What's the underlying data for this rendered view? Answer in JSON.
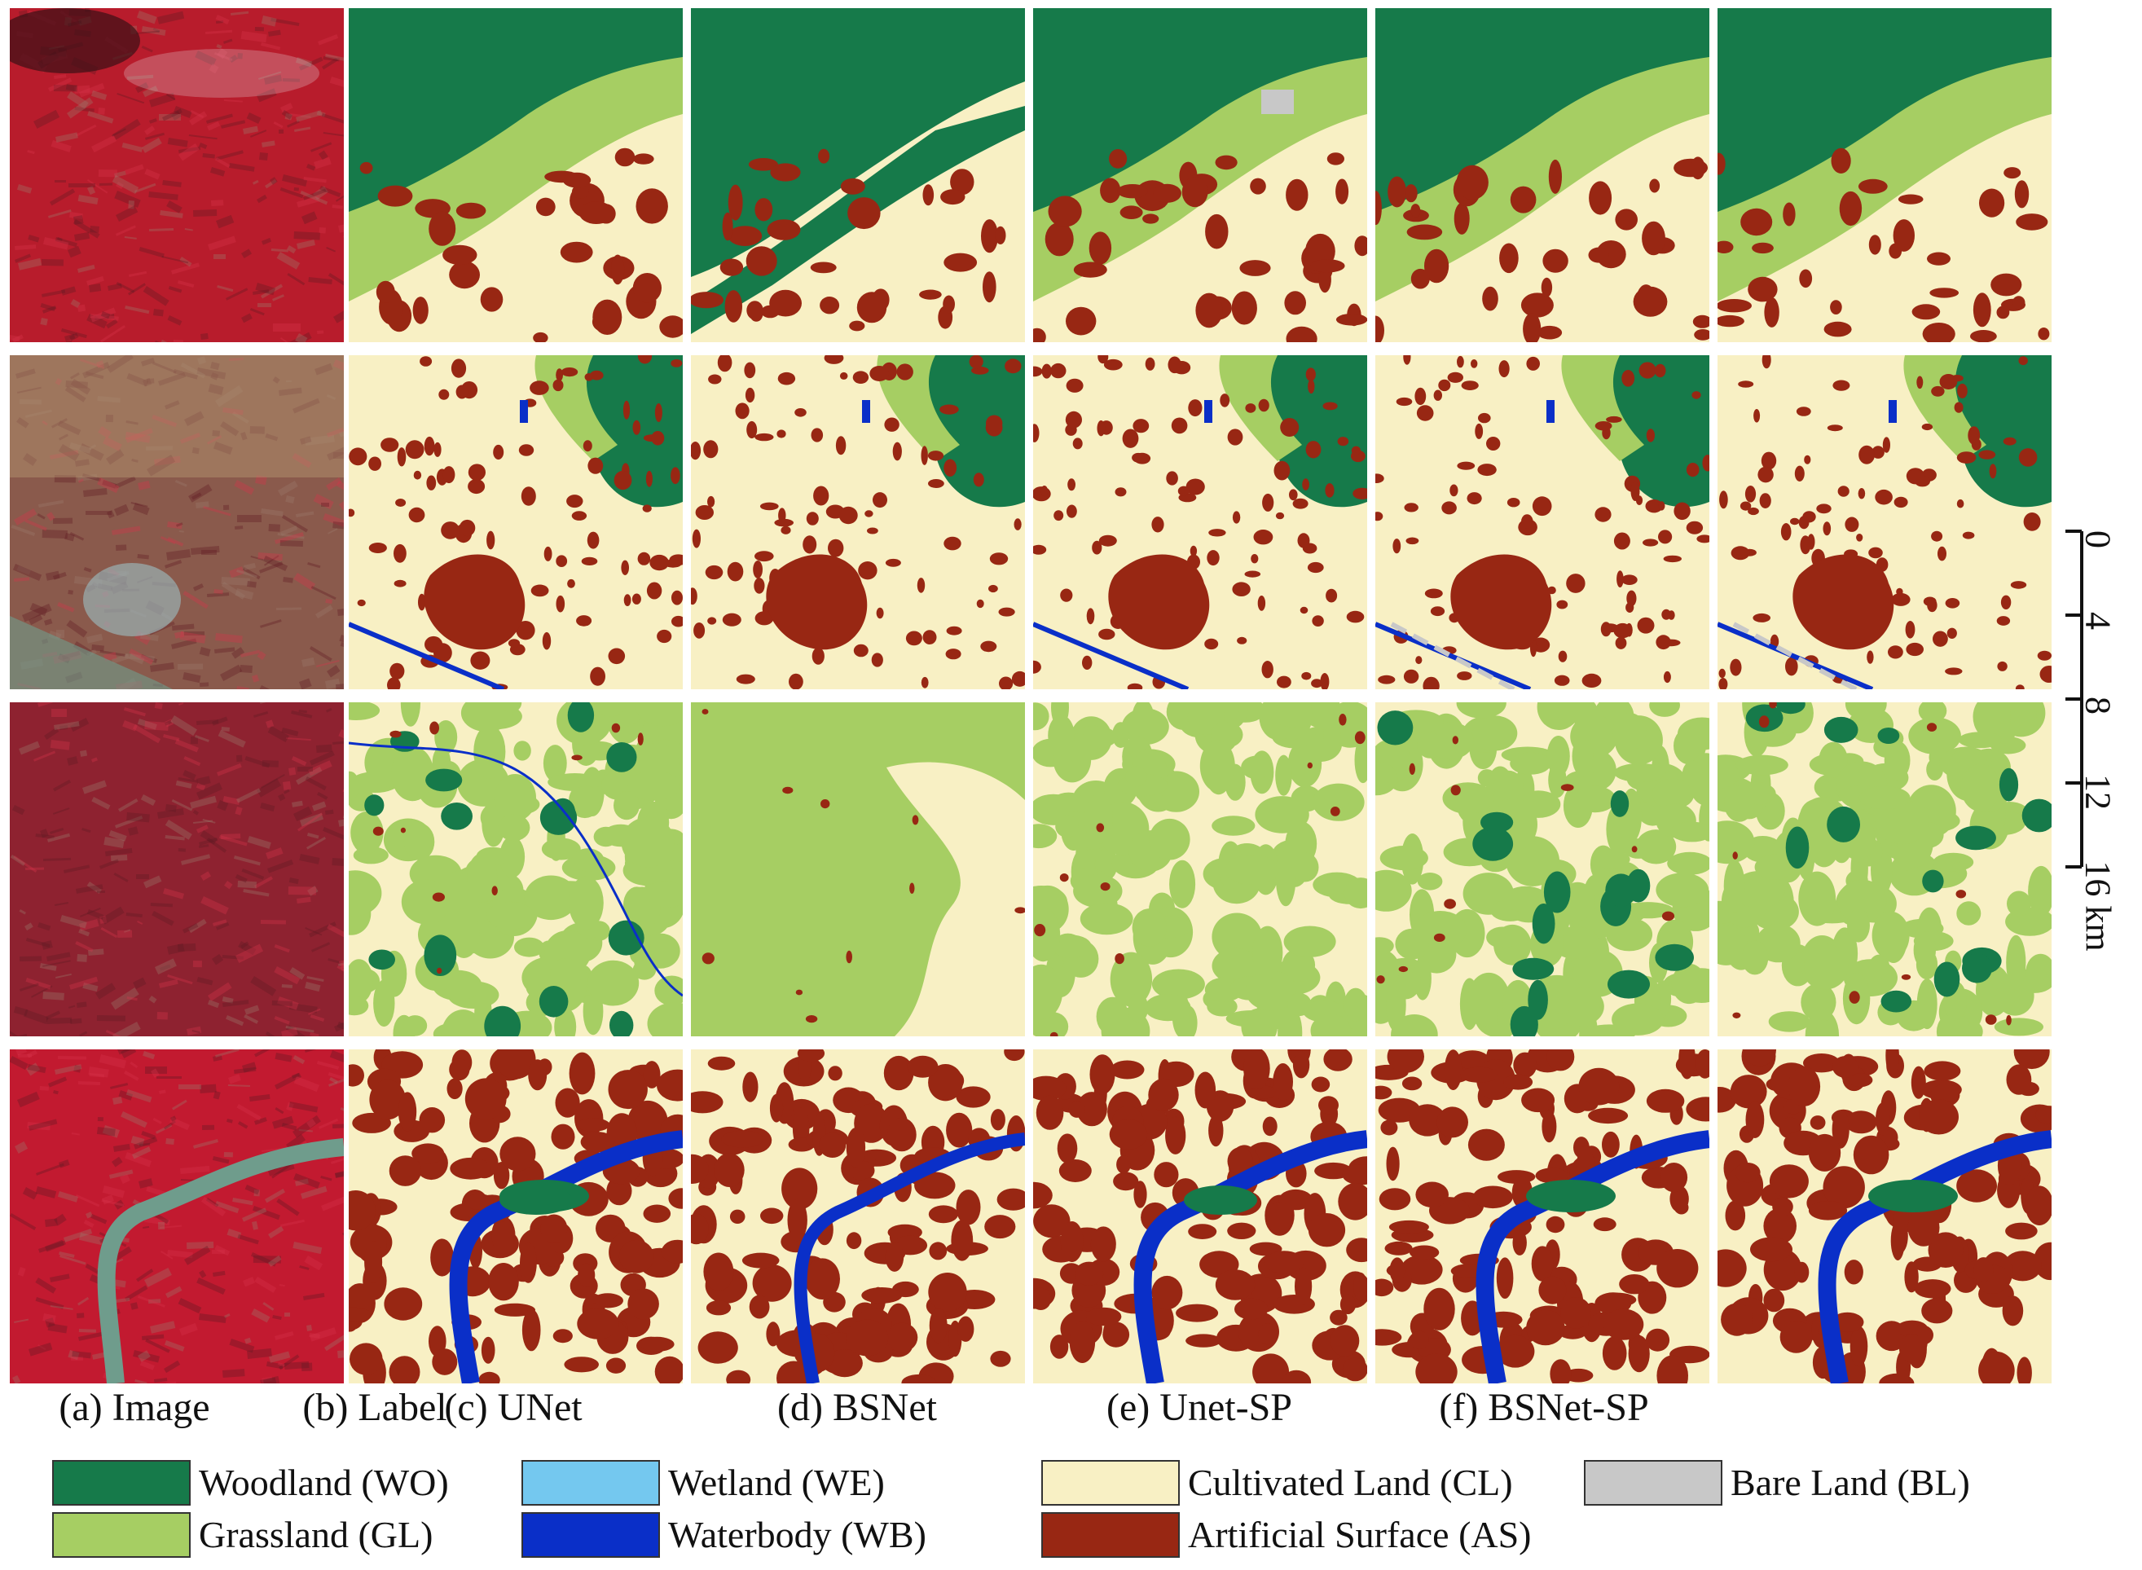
{
  "columns": [
    {
      "caption": "(a) Image"
    },
    {
      "caption": "(b) Label"
    },
    {
      "caption": "(c) UNet"
    },
    {
      "caption": "(d) BSNet"
    },
    {
      "caption": "(e) Unet-SP"
    },
    {
      "caption": "(f) BSNet-SP"
    }
  ],
  "scale_bar": {
    "ticks": [
      "0",
      "4",
      "8",
      "12",
      "16 km"
    ]
  },
  "legend": [
    {
      "label": "Woodland (WO)",
      "color": "#167a4a"
    },
    {
      "label": "Grassland (GL)",
      "color": "#a6ce63"
    },
    {
      "label": "Wetland (WE)",
      "color": "#74c8ef"
    },
    {
      "label": "Waterbody (WB)",
      "color": "#0a2fc8"
    },
    {
      "label": "Cultivated Land (CL)",
      "color": "#f8f0c4"
    },
    {
      "label": "Artificial Surface (AS)",
      "color": "#982713"
    },
    {
      "label": "Bare Land (BL)",
      "color": "#c8c8c8"
    }
  ],
  "palette": {
    "woodland": "#167a4a",
    "grassland": "#a6ce63",
    "waterbody": "#0a2fc8",
    "cultivated": "#f8f0c4",
    "artificial": "#982713",
    "bare": "#c8c8c8",
    "image_red": "#b81c2c",
    "image_dark": "#5e1a22",
    "image_teal": "#6f9c8c"
  }
}
